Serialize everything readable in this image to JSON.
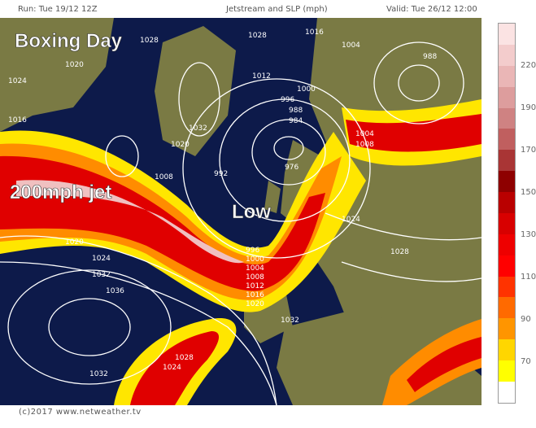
{
  "header": {
    "run": "Run: Tue 19/12 12Z",
    "title": "Jetstream and SLP (mph)",
    "valid": "Valid: Tue 26/12 12:00"
  },
  "annotations": {
    "boxing_day": "Boxing Day",
    "jet": "200mph jet",
    "low": "Low"
  },
  "isobar_labels": [
    "1028",
    "1016",
    "1004",
    "1000",
    "996",
    "988",
    "984",
    "976",
    "1032",
    "1020",
    "1012",
    "1008",
    "992",
    "1024",
    "1036",
    "1028",
    "1016",
    "1024",
    "1020",
    "1004",
    "1008",
    "1032",
    "1024",
    "1020",
    "1032",
    "1028",
    "988",
    "1012",
    "1008",
    "1004",
    "1000",
    "996",
    "1024",
    "1028",
    "1032",
    "1016",
    "1020"
  ],
  "legend": {
    "ticks": [
      "220",
      "190",
      "170",
      "150",
      "130",
      "110",
      "90",
      "70"
    ],
    "colors": [
      "#fbe3e3",
      "#f3cccc",
      "#eab6b6",
      "#dd9d9d",
      "#cf8282",
      "#c05f5f",
      "#a93535",
      "#8e0000",
      "#b90000",
      "#d80000",
      "#ee0000",
      "#ff0000",
      "#ff3300",
      "#ff6a00",
      "#ff9500",
      "#ffd600",
      "#ffff00",
      "#ffffff"
    ]
  },
  "colors": {
    "ocean": "#0d1a4a",
    "land": "#7a7a44",
    "jet_yellow": "#ffe600",
    "jet_orange": "#ff8c00",
    "jet_red": "#e00000",
    "jet_core": "#f0c0c0"
  },
  "footer": "(c)2017 www.netweather.tv"
}
